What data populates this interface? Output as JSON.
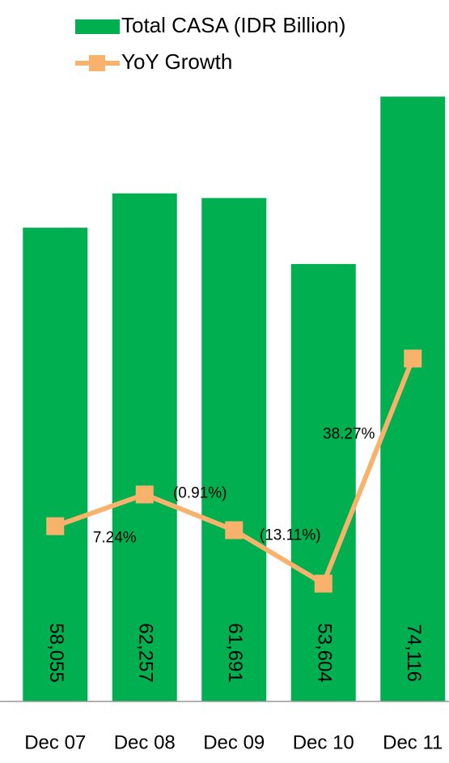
{
  "chart_data": {
    "type": "bar",
    "categories": [
      "Dec 07",
      "Dec 08",
      "Dec 09",
      "Dec 10",
      "Dec 11"
    ],
    "series": [
      {
        "name": "Total CASA (IDR Billion)",
        "type": "bar",
        "color": "#00b050",
        "values": [
          58055,
          62257,
          61691,
          53604,
          74116
        ],
        "value_labels": [
          "58,055",
          "62,257",
          "61,691",
          "53,604",
          "74,116"
        ]
      },
      {
        "name": "YoY Growth",
        "type": "line",
        "axis": "y2",
        "color": "#f9b26b",
        "values": [
          0,
          7.24,
          -0.91,
          -13.11,
          38.27
        ],
        "value_labels": [
          null,
          "7.24%",
          "(0.91%)",
          "(13.11%)",
          "38.27%"
        ]
      }
    ],
    "ylim": [
      0,
      80000
    ],
    "y2lim": [
      -40,
      109
    ],
    "legend": "top"
  }
}
